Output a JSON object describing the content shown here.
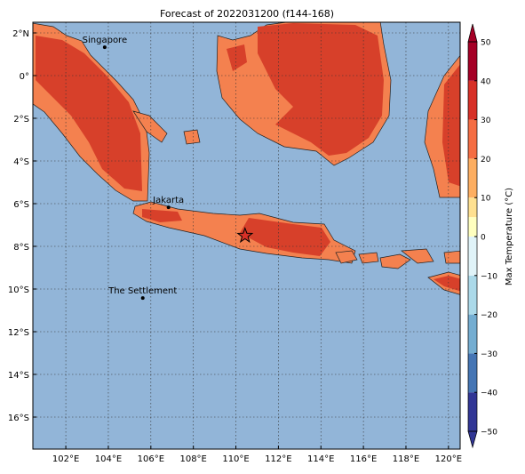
{
  "title": "Forecast of 2022031200 (f144-168)",
  "map": {
    "lonlim": [
      100.45,
      120.55
    ],
    "latlim": [
      -17.5,
      2.5
    ],
    "lonticks": [
      {
        "value": 102,
        "label": "102°E"
      },
      {
        "value": 104,
        "label": "104°E"
      },
      {
        "value": 106,
        "label": "106°E"
      },
      {
        "value": 108,
        "label": "108°E"
      },
      {
        "value": 110,
        "label": "110°E"
      },
      {
        "value": 112,
        "label": "112°E"
      },
      {
        "value": 114,
        "label": "114°E"
      },
      {
        "value": 116,
        "label": "116°E"
      },
      {
        "value": 118,
        "label": "118°E"
      },
      {
        "value": 120,
        "label": "120°E"
      }
    ],
    "latticks": [
      {
        "value": 2,
        "label": "2°N"
      },
      {
        "value": 0,
        "label": "0°"
      },
      {
        "value": -2,
        "label": "2°S"
      },
      {
        "value": -4,
        "label": "4°S"
      },
      {
        "value": -6,
        "label": "6°S"
      },
      {
        "value": -8,
        "label": "8°S"
      },
      {
        "value": -10,
        "label": "10°S"
      },
      {
        "value": -12,
        "label": "12°S"
      },
      {
        "value": -14,
        "label": "14°S"
      },
      {
        "value": -16,
        "label": "16°S"
      }
    ],
    "places": [
      {
        "name": "Singapore",
        "lon": 103.83,
        "lat": 1.33
      },
      {
        "name": "Jakarta",
        "lon": 106.83,
        "lat": -6.17
      },
      {
        "name": "The Settlement",
        "lon": 105.62,
        "lat": -10.42
      }
    ],
    "marker": {
      "lon": 110.43,
      "lat": -7.5
    }
  },
  "colorbar": {
    "label": "Max Temperature (°C)",
    "lim": [
      -50,
      50
    ],
    "ticks": [
      {
        "value": -50,
        "label": "−50"
      },
      {
        "value": -40,
        "label": "−40"
      },
      {
        "value": -30,
        "label": "−30"
      },
      {
        "value": -20,
        "label": "−20"
      },
      {
        "value": -10,
        "label": "−10"
      },
      0,
      10,
      20,
      30,
      40,
      50
    ],
    "levels": [
      -50,
      -40,
      -30,
      -20,
      -10,
      0,
      5,
      10,
      20,
      30,
      40,
      50
    ],
    "colors": [
      "#313695",
      "#4575b4",
      "#74add1",
      "#abd9e9",
      "#e0f3f8",
      "#ffffbf",
      "#fee090",
      "#fdae61",
      "#f46d43",
      "#d73027",
      "#a50026"
    ]
  }
}
